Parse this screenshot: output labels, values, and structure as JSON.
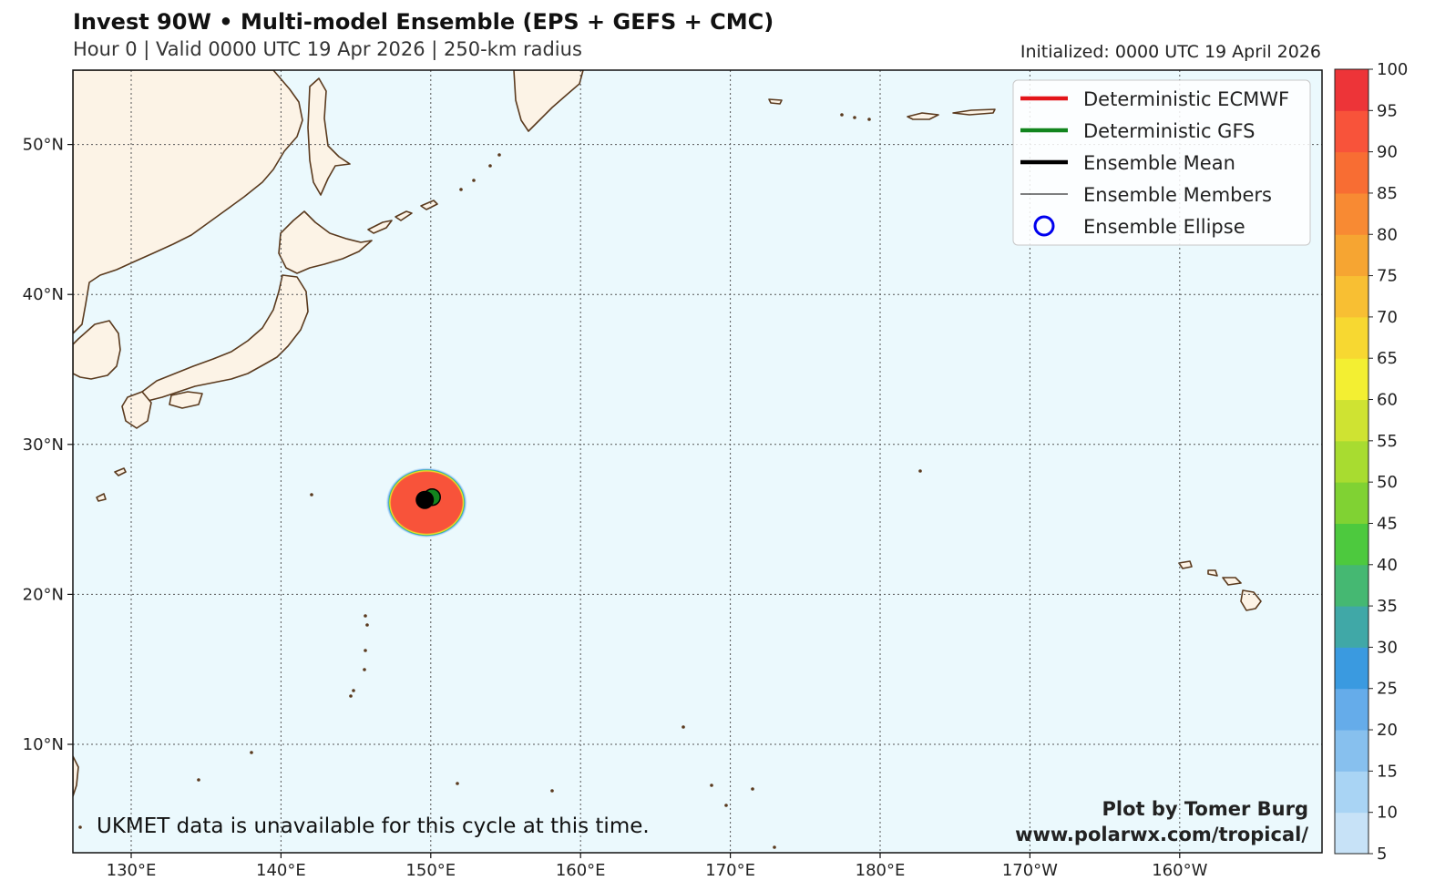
{
  "header": {
    "title": "Invest 90W • Multi-model Ensemble (EPS + GEFS + CMC)",
    "subtitle": "Hour 0 | Valid 0000 UTC 19 Apr 2026 | 250-km radius",
    "initialized": "Initialized: 0000 UTC 19 April 2026"
  },
  "map": {
    "lon_ticks": [
      {
        "lon": 130,
        "label": "130°E"
      },
      {
        "lon": 140,
        "label": "140°E"
      },
      {
        "lon": 150,
        "label": "150°E"
      },
      {
        "lon": 160,
        "label": "160°E"
      },
      {
        "lon": 170,
        "label": "170°E"
      },
      {
        "lon": 180,
        "label": "180°E"
      },
      {
        "lon": 190,
        "label": "170°W"
      },
      {
        "lon": 200,
        "label": "160°W"
      }
    ],
    "lat_ticks": [
      {
        "lat": 10,
        "label": "10°N"
      },
      {
        "lat": 20,
        "label": "20°N"
      },
      {
        "lat": 30,
        "label": "30°N"
      },
      {
        "lat": 40,
        "label": "40°N"
      },
      {
        "lat": 50,
        "label": "50°N"
      }
    ],
    "storm": {
      "lon": 149.6,
      "lat": 26.3
    },
    "colors": {
      "ocean": "#ebf9fd",
      "land": "#fcf3e6",
      "coast": "#5a3a1e"
    }
  },
  "legend": {
    "items": [
      {
        "label": "Deterministic ECMWF",
        "color": "#e3151a",
        "style": "thick"
      },
      {
        "label": "Deterministic GFS",
        "color": "#12851e",
        "style": "thick"
      },
      {
        "label": "Ensemble Mean",
        "color": "#000000",
        "style": "thick"
      },
      {
        "label": "Ensemble Members",
        "color": "#000000",
        "style": "thin"
      },
      {
        "label": "Ensemble Ellipse",
        "color": "#0000ee",
        "style": "circle"
      }
    ]
  },
  "colorbar": {
    "ticks": [
      "5",
      "10",
      "15",
      "20",
      "25",
      "30",
      "35",
      "40",
      "45",
      "50",
      "55",
      "60",
      "65",
      "70",
      "75",
      "80",
      "85",
      "90",
      "95",
      "100"
    ],
    "colors": [
      "#c7e2f7",
      "#a9d4f4",
      "#87c0ee",
      "#65acea",
      "#3a9ae0",
      "#40a8a7",
      "#45b872",
      "#4dc93e",
      "#80d233",
      "#a8dc30",
      "#cfe332",
      "#f3ef32",
      "#f7d831",
      "#f8bf33",
      "#f6a532",
      "#f88a33",
      "#f86d33",
      "#f8533a",
      "#ed3438"
    ]
  },
  "annotations": {
    "ukmet_note": "UKMET data is unavailable for this cycle at this time.",
    "credit_line1": "Plot by Tomer Burg",
    "credit_line2": "www.polarwx.com/tropical/"
  }
}
